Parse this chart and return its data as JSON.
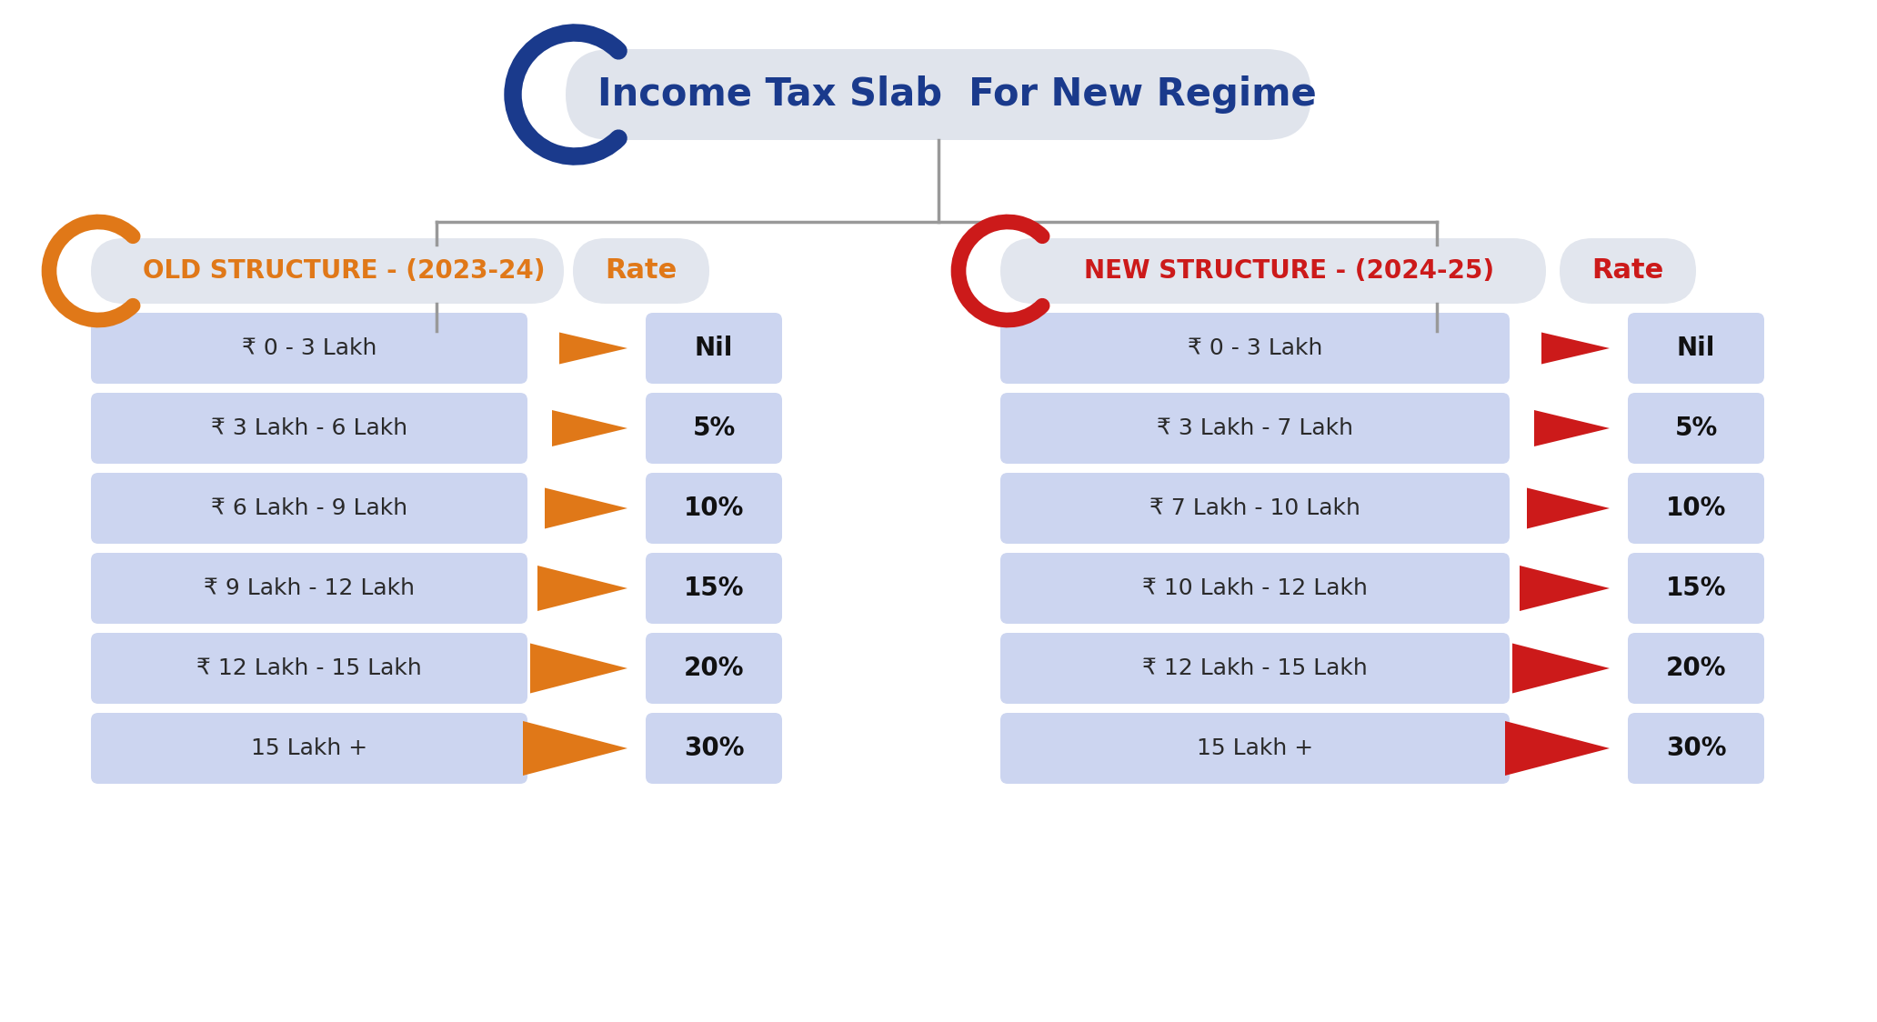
{
  "title": "Income Tax Slab  For New Regime",
  "title_color": "#1a3a8c",
  "title_bg_color": "#e0e4ec",
  "title_bracket_color": "#1a3a8c",
  "old_header": "OLD STRUCTURE - (2023-24)",
  "new_header": "NEW STRUCTURE - (2024-25)",
  "old_header_color": "#e07818",
  "new_header_color": "#cc1a1a",
  "old_bracket_color": "#e07818",
  "new_bracket_color": "#cc1a1a",
  "header_bg": "#e8e8e8",
  "rate_header": "Rate",
  "rate_header_color_old": "#e07818",
  "rate_header_color_new": "#cc1a1a",
  "rate_box_bg": "#e4e8f0",
  "old_slabs": [
    "₹ 0 - 3 Lakh",
    "₹ 3 Lakh - 6 Lakh",
    "₹ 6 Lakh - 9 Lakh",
    "₹ 9 Lakh - 12 Lakh",
    "₹ 12 Lakh - 15 Lakh",
    "15 Lakh +"
  ],
  "new_slabs": [
    "₹ 0 - 3 Lakh",
    "₹ 3 Lakh - 7 Lakh",
    "₹ 7 Lakh - 10 Lakh",
    "₹ 10 Lakh - 12 Lakh",
    "₹ 12 Lakh - 15 Lakh",
    "15 Lakh +"
  ],
  "rates": [
    "Nil",
    "5%",
    "10%",
    "15%",
    "20%",
    "30%"
  ],
  "slab_bg": "#ccd5f0",
  "slab_text_color": "#2a2a2a",
  "rate_text_color": "#111111",
  "arrow_color_old": "#e07818",
  "arrow_color_new": "#cc1a1a",
  "line_color": "#999999",
  "bg_color": "#ffffff"
}
